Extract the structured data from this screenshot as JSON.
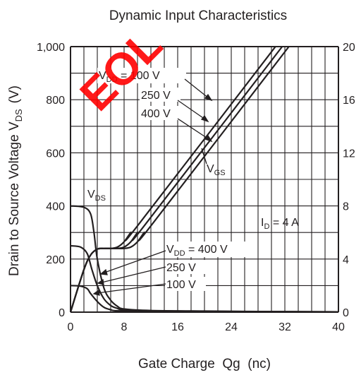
{
  "chart_data": {
    "type": "line",
    "title": "Dynamic Input Characteristics",
    "xlabel": "Gate Charge  Qg  (nc)",
    "ylabel_left": "Drain to Source Voltage  V",
    "ylabel_left_sub": "DS",
    "ylabel_left_unit": "(V)",
    "xlim": [
      0,
      40
    ],
    "ylim_left": [
      0,
      1000
    ],
    "ylim_right": [
      0,
      20
    ],
    "x_ticks": [
      "0",
      "8",
      "16",
      "24",
      "32",
      "40"
    ],
    "y_left_ticks": [
      "0",
      "200",
      "400",
      "600",
      "800",
      "1,000"
    ],
    "y_right_ticks": [
      "0",
      "4",
      "8",
      "12",
      "16",
      "20"
    ],
    "grid": true,
    "stamp_text": "EOL",
    "condition": {
      "prefix": "I",
      "sub": "D",
      "value": " = 4 A"
    },
    "labels": {
      "vgs": {
        "main": "V",
        "sub": "GS"
      },
      "vds": {
        "main": "V",
        "sub": "DS"
      },
      "vdd_top": {
        "main": "V",
        "sub": "DD",
        "value": " = 100 V"
      },
      "vdd_top_250": "250 V",
      "vdd_top_400": "400 V",
      "vdd_bottom": {
        "main": "V",
        "sub": "DD",
        "value": " = 400 V"
      },
      "vdd_bottom_250": "250 V",
      "vdd_bottom_100": "100 V"
    },
    "series": [
      {
        "axis": "right",
        "label": "100 V",
        "x": [
          0,
          2,
          3,
          4,
          5,
          6,
          7,
          8,
          9,
          10,
          30.6
        ],
        "y": [
          0,
          3.2,
          4.3,
          4.75,
          4.8,
          4.8,
          4.9,
          5.3,
          6.0,
          6.5,
          20
        ]
      },
      {
        "axis": "right",
        "label": "250 V",
        "x": [
          0,
          2,
          3,
          4,
          5,
          6,
          7,
          8,
          9,
          10,
          11,
          31.6
        ],
        "y": [
          0,
          3.2,
          4.3,
          4.75,
          4.8,
          4.8,
          4.8,
          4.9,
          5.3,
          6.0,
          6.5,
          20
        ]
      },
      {
        "axis": "right",
        "label": "400 V",
        "x": [
          0,
          2,
          3,
          4,
          5,
          6,
          7,
          8,
          9,
          10,
          11,
          12,
          32.6
        ],
        "y": [
          0,
          3.2,
          4.3,
          4.75,
          4.8,
          4.8,
          4.8,
          4.8,
          4.9,
          5.3,
          6.0,
          6.5,
          20
        ]
      },
      {
        "axis": "left",
        "label": "400 V",
        "x": [
          0,
          2,
          3,
          3.5,
          4,
          5,
          6,
          7,
          8,
          12,
          20,
          30,
          40
        ],
        "y": [
          400,
          395,
          370,
          300,
          200,
          90,
          45,
          22,
          12,
          6,
          4,
          2,
          1
        ]
      },
      {
        "axis": "left",
        "label": "250 V",
        "x": [
          0,
          1.5,
          2.5,
          3.2,
          4,
          5,
          6,
          7,
          8,
          12,
          20,
          30,
          40
        ],
        "y": [
          250,
          245,
          220,
          160,
          100,
          50,
          25,
          14,
          8,
          5,
          3,
          2,
          1
        ]
      },
      {
        "axis": "left",
        "label": "100 V",
        "x": [
          0,
          1.5,
          2.5,
          3,
          4,
          5,
          6,
          7,
          12,
          20,
          40
        ],
        "y": [
          100,
          98,
          88,
          70,
          40,
          18,
          9,
          5,
          3,
          2,
          1
        ]
      }
    ]
  }
}
